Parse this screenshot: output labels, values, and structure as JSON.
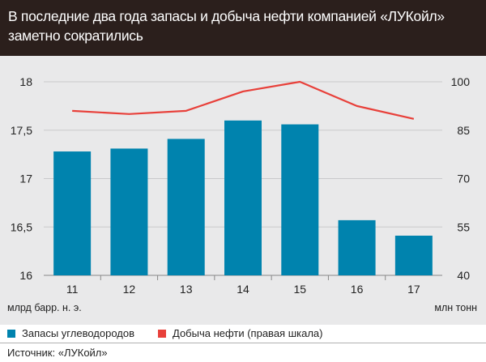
{
  "header": {
    "title": "В последние два года запасы и добыча нефти компанией «ЛУКойл» заметно сократились"
  },
  "units": {
    "left": "млрд барр. н. э.",
    "right": "млн тонн"
  },
  "legend": {
    "bars_label": "Запасы углеводородов",
    "line_label": "Добыча нефти (правая шкала)"
  },
  "source": "Источник: «ЛУКойл»",
  "colors": {
    "bars": "#0083ae",
    "line": "#e8403a",
    "header_bg": "#2b1f1c",
    "plot_bg": "#e9e9ea"
  },
  "chart_data": {
    "type": "bar",
    "categories": [
      "11",
      "12",
      "13",
      "14",
      "15",
      "16",
      "17"
    ],
    "series": [
      {
        "name": "Запасы углеводородов",
        "type": "bar",
        "axis": "left",
        "values": [
          17.28,
          17.31,
          17.41,
          17.6,
          17.56,
          16.57,
          16.41
        ]
      },
      {
        "name": "Добыча нефти (правая шкала)",
        "type": "line",
        "axis": "right",
        "values": [
          91.0,
          90.0,
          91.0,
          97.0,
          100.0,
          92.5,
          88.5
        ]
      }
    ],
    "y_left": {
      "min": 16,
      "max": 18,
      "ticks": [
        "16",
        "16,5",
        "17",
        "17,5",
        "18"
      ],
      "tick_values": [
        16,
        16.5,
        17,
        17.5,
        18
      ]
    },
    "y_right": {
      "min": 40,
      "max": 100,
      "ticks": [
        "40",
        "55",
        "70",
        "85",
        "100"
      ],
      "tick_values": [
        40,
        55,
        70,
        85,
        100
      ]
    },
    "grid": true,
    "legend_position": "bottom"
  }
}
